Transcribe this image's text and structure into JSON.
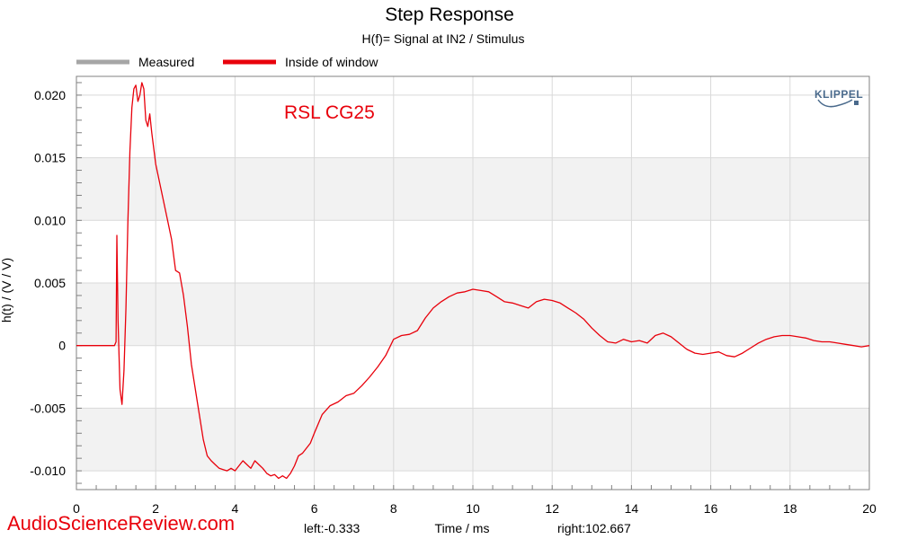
{
  "chart_data": {
    "type": "line",
    "title": "Step Response",
    "subtitle": "H(f)= Signal at IN2 / Stimulus",
    "xlabel": "Time / ms",
    "ylabel": "h(t) / (V / V)",
    "xlim": [
      0,
      20
    ],
    "ylim": [
      -0.0115,
      0.0215
    ],
    "x_ticks": [
      "0",
      "2",
      "4",
      "6",
      "8",
      "10",
      "12",
      "14",
      "16",
      "18",
      "20"
    ],
    "y_ticks": [
      "0.020",
      "0.015",
      "0.010",
      "0.005",
      "0",
      "-0.005",
      "-0.010"
    ],
    "grid": true,
    "legend": {
      "placement": "top-left",
      "entries": [
        {
          "name": "Measured",
          "color": "#a6a6a6"
        },
        {
          "name": "Inside of window",
          "color": "#e8000b"
        }
      ]
    },
    "annotation": {
      "text": "RSL CG25",
      "color": "#e8000b"
    },
    "series": [
      {
        "name": "Inside of window",
        "color": "#e8000b",
        "x": [
          0,
          0.5,
          0.9,
          0.96,
          1.0,
          1.02,
          1.05,
          1.1,
          1.15,
          1.2,
          1.25,
          1.3,
          1.35,
          1.4,
          1.45,
          1.5,
          1.55,
          1.6,
          1.65,
          1.7,
          1.75,
          1.8,
          1.85,
          1.9,
          2.0,
          2.1,
          2.2,
          2.3,
          2.4,
          2.5,
          2.6,
          2.7,
          2.8,
          2.9,
          3.0,
          3.1,
          3.2,
          3.3,
          3.4,
          3.5,
          3.6,
          3.7,
          3.8,
          3.9,
          4.0,
          4.1,
          4.2,
          4.3,
          4.4,
          4.5,
          4.6,
          4.7,
          4.8,
          4.9,
          5.0,
          5.1,
          5.2,
          5.3,
          5.4,
          5.5,
          5.6,
          5.7,
          5.8,
          5.9,
          6.0,
          6.2,
          6.4,
          6.6,
          6.8,
          7.0,
          7.2,
          7.4,
          7.6,
          7.8,
          8.0,
          8.2,
          8.4,
          8.6,
          8.8,
          9.0,
          9.2,
          9.4,
          9.6,
          9.8,
          10.0,
          10.2,
          10.4,
          10.6,
          10.8,
          11.0,
          11.2,
          11.4,
          11.6,
          11.8,
          12.0,
          12.2,
          12.4,
          12.6,
          12.8,
          13.0,
          13.2,
          13.4,
          13.6,
          13.8,
          14.0,
          14.2,
          14.4,
          14.6,
          14.8,
          15.0,
          15.2,
          15.4,
          15.6,
          15.8,
          16.0,
          16.2,
          16.4,
          16.6,
          16.8,
          17.0,
          17.2,
          17.4,
          17.6,
          17.8,
          18.0,
          18.2,
          18.4,
          18.6,
          18.8,
          19.0,
          19.2,
          19.4,
          19.6,
          19.8,
          20.0
        ],
        "y": [
          0,
          0,
          0,
          0,
          0.0003,
          0.0088,
          0.002,
          -0.0035,
          -0.0047,
          -0.002,
          0.003,
          0.01,
          0.0155,
          0.019,
          0.0205,
          0.0208,
          0.0195,
          0.02,
          0.021,
          0.0205,
          0.018,
          0.0175,
          0.0185,
          0.017,
          0.0145,
          0.013,
          0.0115,
          0.01,
          0.0085,
          0.006,
          0.0058,
          0.004,
          0.0015,
          -0.0015,
          -0.0035,
          -0.0055,
          -0.0075,
          -0.0088,
          -0.0092,
          -0.0095,
          -0.0098,
          -0.0099,
          -0.01,
          -0.0098,
          -0.01,
          -0.0096,
          -0.0092,
          -0.0095,
          -0.0098,
          -0.0092,
          -0.0095,
          -0.0098,
          -0.0102,
          -0.0104,
          -0.0103,
          -0.0106,
          -0.0104,
          -0.0106,
          -0.0102,
          -0.0096,
          -0.0088,
          -0.0086,
          -0.0082,
          -0.0078,
          -0.007,
          -0.0055,
          -0.0048,
          -0.0045,
          -0.004,
          -0.0038,
          -0.0032,
          -0.0025,
          -0.0017,
          -0.0008,
          0.0005,
          0.0008,
          0.0009,
          0.0012,
          0.0022,
          0.003,
          0.0035,
          0.0039,
          0.0042,
          0.0043,
          0.0045,
          0.0044,
          0.0043,
          0.0039,
          0.0035,
          0.0034,
          0.0032,
          0.003,
          0.0035,
          0.0037,
          0.0036,
          0.0034,
          0.003,
          0.0026,
          0.0021,
          0.0014,
          0.0008,
          0.0003,
          0.0002,
          0.0005,
          0.0003,
          0.0004,
          0.0002,
          0.0008,
          0.001,
          0.0007,
          0.0002,
          -0.0003,
          -0.0006,
          -0.0007,
          -0.0006,
          -0.0005,
          -0.0008,
          -0.0009,
          -0.0006,
          -0.0002,
          0.0002,
          0.0005,
          0.0007,
          0.0008,
          0.0008,
          0.0007,
          0.0006,
          0.0004,
          0.0003,
          0.0003,
          0.0002,
          0.0001,
          0,
          -0.0001,
          0
        ]
      }
    ]
  },
  "footer": {
    "watermark": "AudioScienceReview.com",
    "left": "left:-0.333",
    "right": "right:102.667"
  },
  "logo": {
    "text": "KLIPPEL"
  },
  "colors": {
    "band": "#f2f2f2",
    "grid": "#d9d9d9",
    "axis": "#808080",
    "trace": "#e8000b",
    "watermark": "#e8000b"
  }
}
